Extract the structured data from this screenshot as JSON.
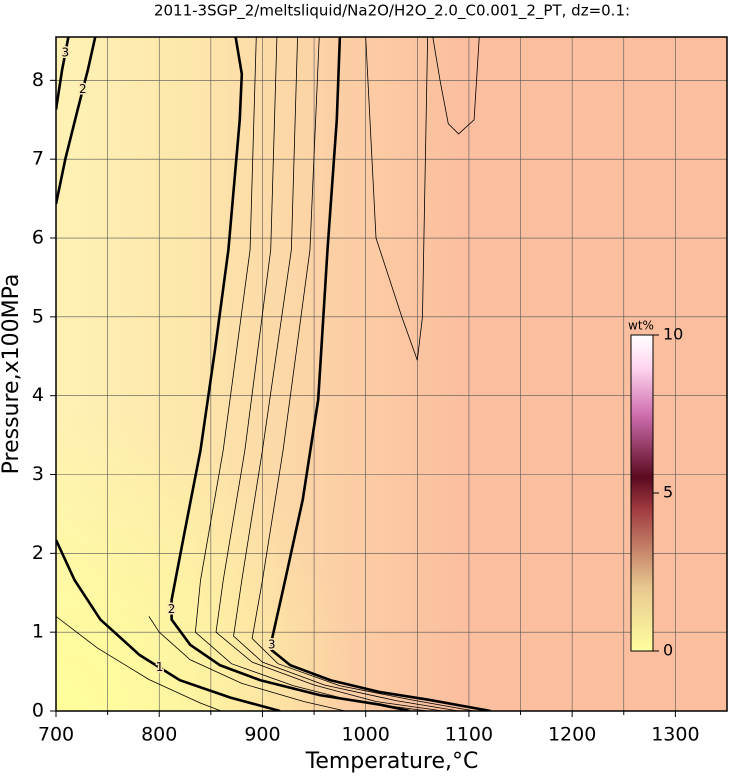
{
  "chart_data": {
    "type": "contour",
    "title": "2011-3SGP_2/meltsliquid/Na2O/H2O_2.0_C0.001_2_PT, dz=0.1:",
    "x_label": "Temperature,°C",
    "y_label": "Pressure,x100MPa",
    "xlim": [
      700,
      1350
    ],
    "ylim": [
      0,
      8.55
    ],
    "xticks": [
      700,
      800,
      900,
      1000,
      1100,
      1200,
      1300
    ],
    "x_minor_ticks": [
      750,
      850,
      950,
      1050,
      1150,
      1250
    ],
    "yticks": [
      0,
      1,
      2,
      3,
      4,
      5,
      6,
      7,
      8
    ],
    "grid": true,
    "contours": [
      {
        "level": 3,
        "major": true,
        "x": [
          975,
          972,
          963,
          954,
          939,
          922,
          909,
          909,
          927,
          966,
          1014,
          1062,
          1121
        ],
        "y": [
          8.55,
          7.5,
          5.85,
          3.95,
          2.68,
          1.66,
          0.9,
          0.77,
          0.58,
          0.39,
          0.24,
          0.14,
          0
        ]
      },
      {
        "level": 2,
        "major": true,
        "x": [
          874,
          880,
          878,
          867,
          854,
          840,
          825,
          812,
          812,
          830,
          859,
          898,
          956,
          1014,
          1043
        ],
        "y": [
          8.55,
          8.08,
          7.5,
          5.85,
          4.58,
          3.31,
          2.3,
          1.41,
          1.16,
          0.84,
          0.58,
          0.39,
          0.2,
          0.08,
          0
        ]
      },
      {
        "level": 2,
        "major": true,
        "x": [
          700,
          709,
          721,
          731,
          738
        ],
        "y": [
          6.43,
          7.0,
          7.63,
          8.14,
          8.55
        ]
      },
      {
        "level": 3,
        "major": true,
        "x": [
          700,
          706,
          712
        ],
        "y": [
          7.63,
          8.14,
          8.55
        ]
      },
      {
        "level": 1,
        "major": true,
        "x": [
          700,
          718,
          743,
          781,
          820,
          869,
          917
        ],
        "y": [
          2.17,
          1.66,
          1.16,
          0.71,
          0.39,
          0.17,
          0
        ]
      },
      {
        "level": 2.2,
        "major": false,
        "x": [
          894,
          888,
          862,
          840,
          835,
          870,
          930,
          990,
          1060
        ],
        "y": [
          8.55,
          5.85,
          3.31,
          1.66,
          1.0,
          0.6,
          0.32,
          0.12,
          0
        ]
      },
      {
        "level": 2.4,
        "major": false,
        "x": [
          914,
          908,
          883,
          862,
          855,
          890,
          950,
          1010,
          1075
        ],
        "y": [
          8.55,
          5.85,
          3.31,
          1.66,
          1.0,
          0.62,
          0.33,
          0.12,
          0
        ]
      },
      {
        "level": 2.6,
        "major": false,
        "x": [
          934,
          928,
          900,
          880,
          872,
          900,
          960,
          1030,
          1090
        ],
        "y": [
          8.55,
          5.85,
          3.31,
          1.66,
          0.95,
          0.62,
          0.33,
          0.13,
          0
        ]
      },
      {
        "level": 2.8,
        "major": false,
        "x": [
          955,
          946,
          920,
          900,
          890,
          915,
          975,
          1045,
          1105
        ],
        "y": [
          8.55,
          5.85,
          3.31,
          1.66,
          0.92,
          0.6,
          0.32,
          0.14,
          0
        ]
      },
      {
        "level": 1.5,
        "major": false,
        "x": [
          790,
          800,
          830,
          880,
          940,
          980
        ],
        "y": [
          1.2,
          1.0,
          0.65,
          0.35,
          0.12,
          0
        ]
      },
      {
        "level": 0.5,
        "major": false,
        "x": [
          700,
          740,
          790,
          840,
          860
        ],
        "y": [
          1.2,
          0.8,
          0.4,
          0.1,
          0
        ]
      },
      {
        "level": 3.1,
        "major": false,
        "x": [
          1065,
          1072,
          1080,
          1090,
          1105,
          1110
        ],
        "y": [
          8.55,
          8.0,
          7.45,
          7.32,
          7.5,
          8.55
        ]
      },
      {
        "level": 3.1,
        "major": false,
        "x": [
          1000,
          1010,
          1035,
          1050,
          1055,
          1060
        ],
        "y": [
          8.55,
          6.0,
          5.0,
          4.45,
          5.0,
          8.55
        ]
      }
    ],
    "colorbar": {
      "label": "wt%",
      "lim": [
        0,
        10
      ],
      "ticks": [
        0,
        5,
        10
      ]
    }
  }
}
